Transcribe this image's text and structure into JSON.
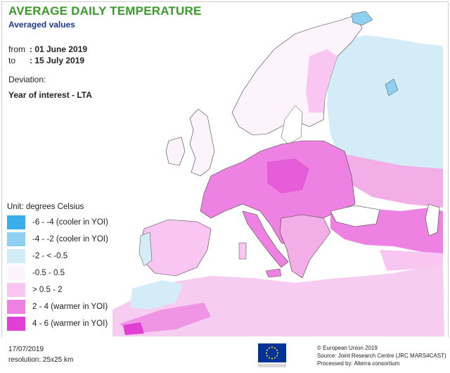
{
  "header": {
    "title": "AVERAGE DAILY TEMPERATURE",
    "subtitle": "Averaged values",
    "from_label": "from",
    "from_value": ": 01 June 2019",
    "to_label": "to",
    "to_value": ": 15 July 2019",
    "deviation_label": "Deviation:",
    "year_of_interest": "Year of interest - LTA"
  },
  "legend": {
    "title": "Unit: degrees Celsius",
    "items": [
      {
        "label": "-6 - -4 (cooler in YOI)",
        "color": "#3aaee8"
      },
      {
        "label": "-4 - -2 (cooler in YOI)",
        "color": "#8fd0f0"
      },
      {
        "label": "-2 - < -0.5",
        "color": "#d4ecf7"
      },
      {
        "label": "-0.5 - 0.5",
        "color": "#fcf3fb"
      },
      {
        "label": "> 0.5 - 2",
        "color": "#f8c6f0"
      },
      {
        "label": "2 - 4 (warmer in YOI)",
        "color": "#ee82e2"
      },
      {
        "label": "4 - 6 (warmer in YOI)",
        "color": "#e040d4"
      }
    ]
  },
  "footer": {
    "date": "17/07/2019",
    "resolution": "resolution: 25x25 km",
    "copyright": "© European Union 2019",
    "source": "Source: Joint Research Centre (JRC MARS4CAST)",
    "processed_by": "Processed by: Alterra consortium"
  },
  "colors": {
    "title": "#3a9a2a",
    "subtitle": "#1f3a8c",
    "eu_flag": "#003399",
    "eu_stars": "#ffcc00"
  }
}
